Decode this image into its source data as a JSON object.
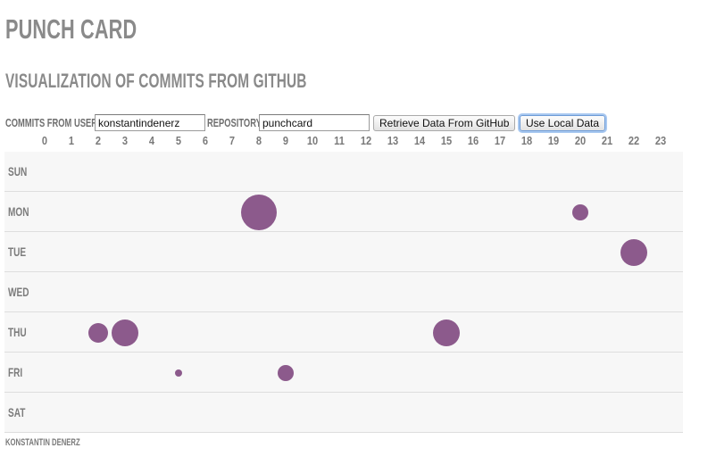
{
  "header": {
    "title": "PUNCH CARD",
    "subtitle": "VISUALIZATION OF COMMITS FROM GITHUB"
  },
  "controls": {
    "user_label": "COMMITS FROM USER",
    "user_value": "konstantindenerz",
    "repo_label": "REPOSITORY",
    "repo_value": "punchcard",
    "retrieve_button": "Retrieve Data From GitHub",
    "local_button": "Use Local Data"
  },
  "punchcard": {
    "hours": [
      "0",
      "1",
      "2",
      "3",
      "4",
      "5",
      "6",
      "7",
      "8",
      "9",
      "10",
      "11",
      "12",
      "13",
      "14",
      "15",
      "16",
      "17",
      "18",
      "19",
      "20",
      "21",
      "22",
      "23"
    ],
    "days": [
      "SUN",
      "MON",
      "TUE",
      "WED",
      "THU",
      "FRI",
      "SAT"
    ],
    "commits": [
      {
        "day": "MON",
        "hour": 8,
        "size": 1.0
      },
      {
        "day": "MON",
        "hour": 20,
        "size": 0.2
      },
      {
        "day": "TUE",
        "hour": 22,
        "size": 0.55
      },
      {
        "day": "THU",
        "hour": 2,
        "size": 0.3
      },
      {
        "day": "THU",
        "hour": 3,
        "size": 0.55
      },
      {
        "day": "THU",
        "hour": 15,
        "size": 0.55
      },
      {
        "day": "FRI",
        "hour": 5,
        "size": 0.05
      },
      {
        "day": "FRI",
        "hour": 9,
        "size": 0.2
      }
    ],
    "accent_color": "#8c5a8c"
  },
  "footer": {
    "author": "KONSTANTIN DENERZ"
  }
}
